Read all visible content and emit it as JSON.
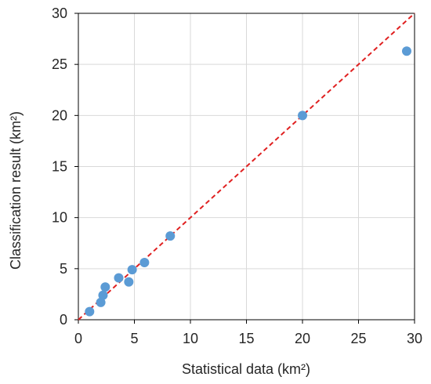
{
  "chart_data": {
    "type": "scatter",
    "xlabel": "Statistical data (km²)",
    "ylabel": "Classification result (km²)",
    "xlim": [
      0,
      30
    ],
    "ylim": [
      0,
      30
    ],
    "xticks": [
      "0",
      "5",
      "10",
      "15",
      "20",
      "25",
      "30"
    ],
    "yticks": [
      "0",
      "5",
      "10",
      "15",
      "20",
      "25",
      "30"
    ],
    "grid": true,
    "series": [
      {
        "points": [
          [
            1.0,
            0.8
          ],
          [
            2.0,
            1.7
          ],
          [
            2.2,
            2.4
          ],
          [
            2.4,
            3.2
          ],
          [
            3.6,
            4.1
          ],
          [
            4.5,
            3.7
          ],
          [
            4.8,
            4.9
          ],
          [
            5.9,
            5.6
          ],
          [
            8.2,
            8.2
          ],
          [
            20.0,
            20.0
          ],
          [
            29.3,
            26.3
          ]
        ],
        "color": "#5B9BD5"
      }
    ],
    "reference_line": {
      "from": [
        0,
        0
      ],
      "to": [
        30,
        30
      ],
      "style": "dashed",
      "color": "#E02020"
    }
  }
}
